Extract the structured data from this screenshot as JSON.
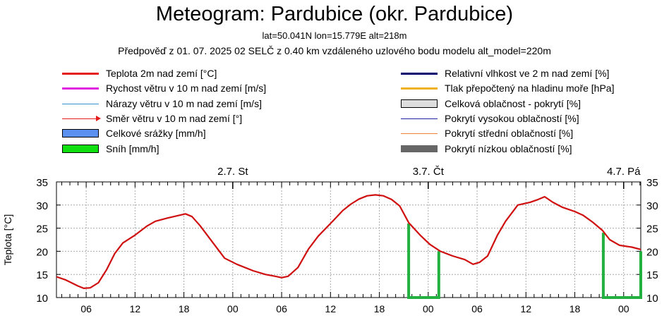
{
  "header": {
    "title": "Meteogram: Pardubice (okr. Pardubice)",
    "location": "lat=50.041N lon=15.779E alt=218m",
    "forecast_info": "Předpověď z 01. 07. 2025 02 SELČ z 0.40 km vzdáleného uzlového bodu modelu alt_model=220m"
  },
  "legend": {
    "left": [
      {
        "label": "Teplota 2m nad zemí [°C]",
        "style": "line",
        "color": "#e41a1c"
      },
      {
        "label": "Rychost větru v 10 m nad zemí [m/s]",
        "style": "line",
        "color": "#e020e0"
      },
      {
        "label": "Nárazy větru v 10 m nad zemí [m/s]",
        "style": "thin",
        "color": "#3a8fd0"
      },
      {
        "label": "Směr větru v 10 m nad zemí [°]",
        "style": "arrow",
        "color": "#e41a1c"
      },
      {
        "label": "Celkové srážky [mm/h]",
        "style": "box",
        "color": "#5b8ff0"
      },
      {
        "label": "Sníh [mm/h]",
        "style": "box",
        "color": "#10e010"
      }
    ],
    "right": [
      {
        "label": "Relativní vlhkost ve 2 m nad zemí [%]",
        "style": "line",
        "color": "#000070"
      },
      {
        "label": "Tlak přepočtený na hladinu moře [hPa]",
        "style": "line",
        "color": "#f0b020"
      },
      {
        "label": "Celková oblačnost - pokrytí [%]",
        "style": "box",
        "color": "#dddddd"
      },
      {
        "label": "Pokrytí vysokou oblačností [%]",
        "style": "thin",
        "color": "#2020a0"
      },
      {
        "label": "Pokrytí střední oblačností [%]",
        "style": "thin",
        "color": "#f08040"
      },
      {
        "label": "Pokrytí nízkou oblačností [%]",
        "style": "solid",
        "color": "#666666"
      }
    ]
  },
  "chart_data": {
    "type": "line",
    "ylabel": "Teplota [°C]",
    "ylim": [
      10,
      35
    ],
    "yticks": [
      10,
      15,
      20,
      25,
      30,
      35
    ],
    "xlim_hours": [
      2.35,
      74.1
    ],
    "xticks": [
      {
        "h": 6,
        "label": "06"
      },
      {
        "h": 12,
        "label": "12"
      },
      {
        "h": 18,
        "label": "18"
      },
      {
        "h": 24,
        "label": "00"
      },
      {
        "h": 30,
        "label": "06"
      },
      {
        "h": 36,
        "label": "12"
      },
      {
        "h": 42,
        "label": "18"
      },
      {
        "h": 48,
        "label": "00"
      },
      {
        "h": 54,
        "label": "06"
      },
      {
        "h": 60,
        "label": "12"
      },
      {
        "h": 66,
        "label": "18"
      },
      {
        "h": 72,
        "label": "00"
      }
    ],
    "day_labels": [
      {
        "h": 24,
        "label": "2.7. St"
      },
      {
        "h": 48,
        "label": "3.7. Čt"
      },
      {
        "h": 72,
        "label": "4.7. Pá"
      }
    ],
    "grid": true,
    "series": [
      {
        "name": "Teplota 2m nad zemí [°C]",
        "color": "#d01010",
        "points": [
          [
            2.35,
            14.5
          ],
          [
            3.5,
            13.8
          ],
          [
            5,
            12.5
          ],
          [
            5.7,
            12
          ],
          [
            6.5,
            12.1
          ],
          [
            7.5,
            13.2
          ],
          [
            8.5,
            16
          ],
          [
            9.5,
            19.5
          ],
          [
            10.5,
            21.8
          ],
          [
            12,
            23.5
          ],
          [
            13.5,
            25.5
          ],
          [
            14.5,
            26.5
          ],
          [
            16,
            27.2
          ],
          [
            17.5,
            27.8
          ],
          [
            18.2,
            28.1
          ],
          [
            19,
            27.5
          ],
          [
            20,
            25.5
          ],
          [
            21.5,
            22
          ],
          [
            23,
            18.5
          ],
          [
            24.5,
            17.2
          ],
          [
            26.5,
            15.8
          ],
          [
            28,
            15
          ],
          [
            29.2,
            14.6
          ],
          [
            30,
            14.3
          ],
          [
            30.8,
            14.6
          ],
          [
            32,
            16.5
          ],
          [
            33.3,
            20.5
          ],
          [
            34.5,
            23.3
          ],
          [
            36,
            26
          ],
          [
            37.5,
            28.8
          ],
          [
            38.5,
            30.2
          ],
          [
            39.5,
            31.3
          ],
          [
            40.5,
            32
          ],
          [
            41.5,
            32.2
          ],
          [
            42.5,
            32
          ],
          [
            43.5,
            31.2
          ],
          [
            44.5,
            29.8
          ],
          [
            45.6,
            26.2
          ],
          [
            47,
            23.5
          ],
          [
            48.2,
            21.5
          ],
          [
            49.5,
            20
          ],
          [
            51,
            19
          ],
          [
            52.5,
            18.2
          ],
          [
            53.5,
            17.2
          ],
          [
            54.3,
            17.6
          ],
          [
            55.3,
            19
          ],
          [
            56.5,
            23.5
          ],
          [
            57.5,
            26.5
          ],
          [
            59,
            30
          ],
          [
            60.5,
            30.6
          ],
          [
            61.5,
            31.2
          ],
          [
            62.3,
            31.8
          ],
          [
            63.3,
            30.6
          ],
          [
            64.5,
            29.5
          ],
          [
            66,
            28.6
          ],
          [
            67,
            27.8
          ],
          [
            68.2,
            26.3
          ],
          [
            69.4,
            24.5
          ],
          [
            70.3,
            22.5
          ],
          [
            71.5,
            21.3
          ],
          [
            73,
            20.9
          ],
          [
            74.1,
            20.4
          ]
        ]
      }
    ],
    "snow_markers": [
      {
        "start_h": 45.6,
        "end_h": 49.3,
        "left_top": 26,
        "right_top": 20
      },
      {
        "start_h": 69.5,
        "end_h": 74.1,
        "left_top": 24,
        "right_top": 20
      }
    ]
  }
}
